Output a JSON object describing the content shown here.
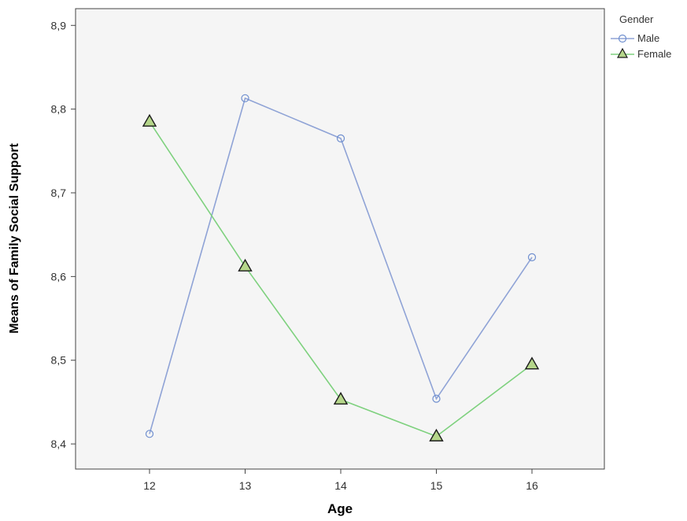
{
  "chart_data": {
    "type": "line",
    "xlabel": "Age",
    "ylabel": "Means of Family Social Support",
    "categories": [
      "12",
      "13",
      "14",
      "15",
      "16"
    ],
    "y_ticks": [
      "8,4",
      "8,5",
      "8,6",
      "8,7",
      "8,8",
      "8,9"
    ],
    "ylim": [
      8.37,
      8.92
    ],
    "grid": false,
    "legend": {
      "title": "Gender",
      "placement": "outside-right-top"
    },
    "series": [
      {
        "name": "Male",
        "marker": "circle",
        "color": "#8fa3d6",
        "marker_color": "#6f8fcf",
        "values": [
          8.412,
          8.813,
          8.765,
          8.454,
          8.623
        ]
      },
      {
        "name": "Female",
        "marker": "triangle",
        "color": "#7ed17e",
        "marker_fill": "#b5d68a",
        "values": [
          8.785,
          8.612,
          8.453,
          8.409,
          8.495
        ]
      }
    ],
    "plot_background": "#f5f5f5"
  }
}
